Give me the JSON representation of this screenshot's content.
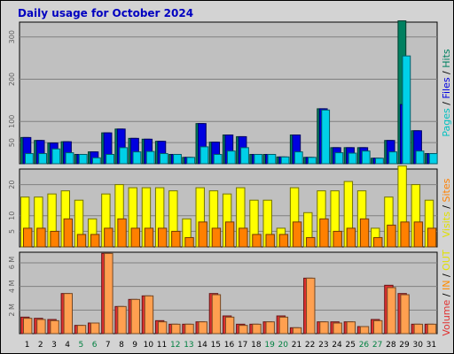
{
  "title": "Daily usage for October 2024",
  "chart_data": [
    {
      "type": "bar",
      "name": "hits-panel",
      "categories": [
        "1",
        "2",
        "3",
        "4",
        "5",
        "6",
        "7",
        "8",
        "9",
        "10",
        "11",
        "12",
        "13",
        "14",
        "15",
        "16",
        "17",
        "18",
        "19",
        "20",
        "21",
        "22",
        "23",
        "24",
        "25",
        "26",
        "27",
        "28",
        "29",
        "30",
        "31"
      ],
      "weekend_days": [
        "5",
        "6",
        "12",
        "13",
        "19",
        "20",
        "26",
        "27"
      ],
      "ylim": [
        0,
        335
      ],
      "yticks": [
        50,
        100,
        200,
        300
      ],
      "ytick_labels": [
        "50",
        "100",
        "200",
        "300"
      ],
      "series": [
        {
          "name": "Hits",
          "color": "#008060",
          "values": [
            62,
            55,
            49,
            52,
            22,
            28,
            73,
            82,
            60,
            58,
            53,
            22,
            15,
            95,
            51,
            68,
            64,
            22,
            22,
            16,
            68,
            15,
            130,
            38,
            38,
            38,
            13,
            55,
            338,
            78,
            24
          ]
        },
        {
          "name": "Files",
          "color": "#0000e0",
          "values": [
            62,
            55,
            49,
            52,
            22,
            28,
            73,
            82,
            60,
            58,
            53,
            22,
            15,
            95,
            51,
            68,
            64,
            22,
            22,
            16,
            68,
            15,
            130,
            38,
            38,
            38,
            13,
            55,
            140,
            78,
            24
          ]
        },
        {
          "name": "Pages",
          "color": "#00d0e8",
          "values": [
            24,
            24,
            35,
            26,
            22,
            14,
            22,
            38,
            28,
            29,
            24,
            22,
            15,
            40,
            22,
            30,
            38,
            22,
            22,
            16,
            28,
            15,
            127,
            26,
            25,
            30,
            13,
            28,
            255,
            30,
            24
          ]
        }
      ],
      "legend": [
        {
          "text": "Pages",
          "color": "#00c0c0"
        },
        {
          "text": " / ",
          "color": "#000000"
        },
        {
          "text": "Files",
          "color": "#0000e0"
        },
        {
          "text": " / ",
          "color": "#000000"
        },
        {
          "text": "Hits",
          "color": "#008060"
        }
      ]
    },
    {
      "type": "bar",
      "name": "visits-panel",
      "categories": [
        "1",
        "2",
        "3",
        "4",
        "5",
        "6",
        "7",
        "8",
        "9",
        "10",
        "11",
        "12",
        "13",
        "14",
        "15",
        "16",
        "17",
        "18",
        "19",
        "20",
        "21",
        "22",
        "23",
        "24",
        "25",
        "26",
        "27",
        "28",
        "29",
        "30",
        "31"
      ],
      "ylim": [
        0,
        25
      ],
      "yticks": [
        5,
        10,
        20
      ],
      "ytick_labels": [
        "5",
        "10",
        "20"
      ],
      "series": [
        {
          "name": "Visits",
          "color": "#ffff00",
          "values": [
            16,
            16,
            17,
            18,
            15,
            9,
            17,
            20,
            19,
            19,
            19,
            18,
            9,
            19,
            18,
            17,
            19,
            15,
            15,
            6,
            19,
            11,
            18,
            18,
            21,
            18,
            6,
            16,
            26,
            20,
            15
          ]
        },
        {
          "name": "Sites",
          "color": "#ff8000",
          "values": [
            6,
            6,
            5,
            9,
            4,
            4,
            6,
            9,
            6,
            6,
            6,
            5,
            3,
            8,
            6,
            8,
            6,
            4,
            4,
            4,
            8,
            3,
            9,
            5,
            6,
            9,
            3,
            7,
            8,
            8,
            6
          ]
        }
      ],
      "legend": [
        {
          "text": "Visits",
          "color": "#e0e000"
        },
        {
          "text": " / ",
          "color": "#000000"
        },
        {
          "text": "Sites",
          "color": "#ff8000"
        }
      ]
    },
    {
      "type": "bar",
      "name": "volume-panel",
      "categories": [
        "1",
        "2",
        "3",
        "4",
        "5",
        "6",
        "7",
        "8",
        "9",
        "10",
        "11",
        "12",
        "13",
        "14",
        "15",
        "16",
        "17",
        "18",
        "19",
        "20",
        "21",
        "22",
        "23",
        "24",
        "25",
        "26",
        "27",
        "28",
        "29",
        "30",
        "31"
      ],
      "ylim": [
        0,
        6.9
      ],
      "yticks": [
        2,
        4,
        6
      ],
      "ytick_labels": [
        "2 M",
        "4 M",
        "6 M"
      ],
      "series": [
        {
          "name": "Volume",
          "color": "#e03030",
          "values": [
            1.4,
            1.3,
            1.2,
            3.4,
            0.7,
            0.9,
            6.8,
            2.3,
            2.9,
            3.2,
            1.1,
            0.8,
            0.8,
            1.0,
            3.4,
            1.5,
            0.8,
            0.8,
            1.0,
            1.5,
            0.5,
            4.7,
            1.0,
            1.0,
            1.0,
            0.6,
            1.2,
            4.1,
            3.4,
            0.8,
            0.8
          ]
        },
        {
          "name": "IN",
          "color": "#ffa050",
          "values": [
            1.3,
            1.2,
            1.1,
            3.4,
            0.7,
            0.9,
            6.8,
            2.3,
            2.9,
            3.2,
            1.0,
            0.8,
            0.8,
            1.0,
            3.3,
            1.4,
            0.7,
            0.8,
            1.0,
            1.4,
            0.5,
            4.7,
            1.0,
            0.9,
            1.0,
            0.6,
            1.1,
            3.9,
            3.3,
            0.8,
            0.8
          ]
        }
      ],
      "legend": [
        {
          "text": "Volume",
          "color": "#e03030"
        },
        {
          "text": " / ",
          "color": "#000000"
        },
        {
          "text": "IN",
          "color": "#ff8c00"
        },
        {
          "text": " / ",
          "color": "#000000"
        },
        {
          "text": "OUT",
          "color": "#e0e000"
        }
      ]
    }
  ],
  "colors": {
    "weekday_label": "#000000",
    "weekend_label": "#008040"
  }
}
